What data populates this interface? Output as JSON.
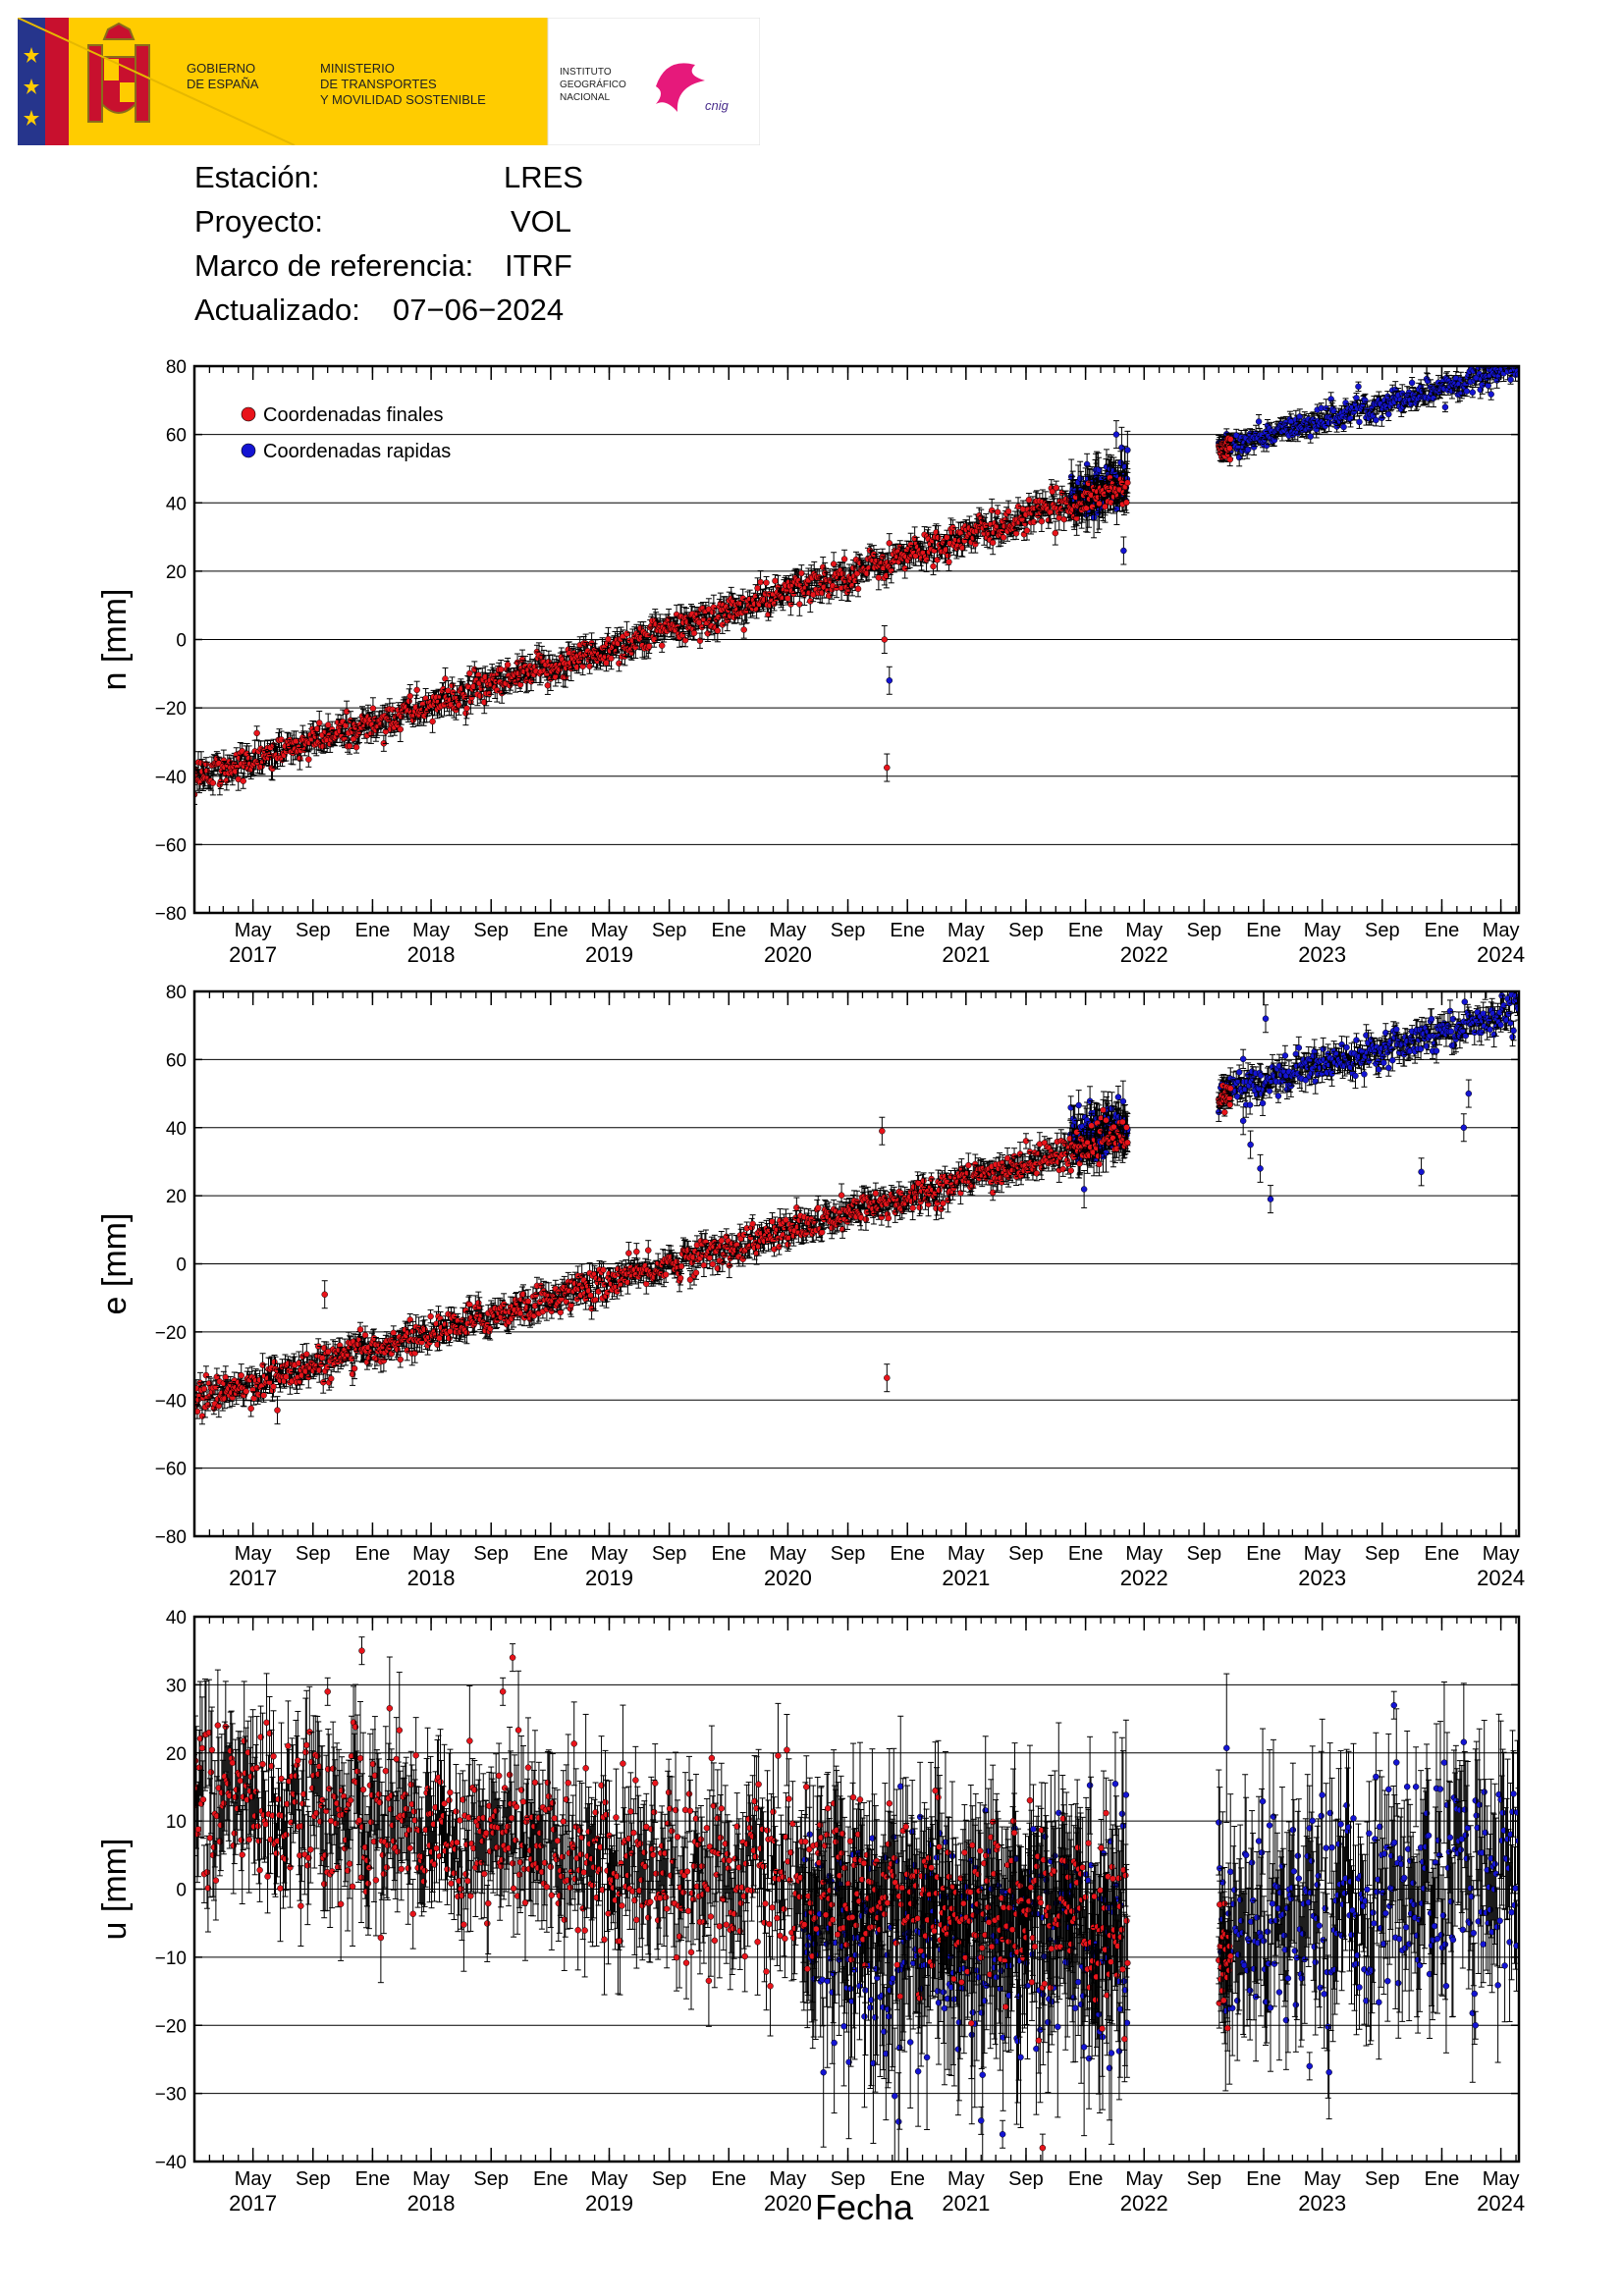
{
  "header": {
    "flag_colors": {
      "red": "#c8102e",
      "yellow": "#ffcc00",
      "blue": "#26358c"
    },
    "gobierno": [
      "GOBIERNO",
      "DE ESPAÑA"
    ],
    "ministerio": [
      "MINISTERIO",
      "DE TRANSPORTES",
      "Y MOVILIDAD SOSTENIBLE"
    ],
    "instituto": [
      "INSTITUTO",
      "GEOGRÁFICO",
      "NACIONAL"
    ],
    "cnig": "cnig",
    "ministry_band_color": "#ffcc00"
  },
  "info": [
    {
      "label": "Estación:",
      "value": "LRES"
    },
    {
      "label": "Proyecto:",
      "value": "VOL"
    },
    {
      "label": "Marco de referencia:",
      "value": "ITRF"
    },
    {
      "label": "Actualizado:",
      "value": "07−06−2024"
    }
  ],
  "xlabel": "Fecha",
  "chart_data": [
    {
      "type": "scatter",
      "ylabel": "n [mm]",
      "ylim": [
        -80,
        80
      ],
      "yticks": [
        -80,
        -60,
        -40,
        -20,
        0,
        20,
        40,
        60,
        80
      ],
      "ytick_labels": [
        "−80",
        "−60",
        "−40",
        "−20",
        "0",
        "20",
        "40",
        "60",
        "80"
      ],
      "xlim": [
        "2017-01-01",
        "2024-06-07"
      ],
      "grid": true,
      "legend": {
        "position": "top-left",
        "entries": [
          {
            "name": "Coordenadas finales",
            "color": "#e8141b"
          },
          {
            "name": "Coordenadas rapidas",
            "color": "#1414d2"
          }
        ]
      },
      "series": [
        {
          "name": "Coordenadas finales",
          "color": "#e8141b",
          "segments": [
            {
              "from": "2017-01-01",
              "to": "2022-03-28",
              "start": -41,
              "end": 45,
              "scatter": 2.4
            },
            {
              "from": "2022-10-01",
              "to": "2022-10-25",
              "start": 55,
              "end": 57,
              "scatter": 1.5
            }
          ]
        },
        {
          "name": "Coordenadas rapidas",
          "color": "#1414d2",
          "segments": [
            {
              "from": "2021-12-01",
              "to": "2022-03-28",
              "start": 42,
              "end": 46,
              "scatter": 4
            },
            {
              "from": "2022-10-01",
              "to": "2024-06-07",
              "start": 56,
              "end": 80,
              "scatter": 1.8
            }
          ]
        }
      ],
      "outliers": [
        {
          "date": "2020-11-20",
          "value": -37.5,
          "series": "Coordenadas finales"
        },
        {
          "date": "2020-11-15",
          "value": 0,
          "series": "Coordenadas finales"
        },
        {
          "date": "2020-11-25",
          "value": -12,
          "series": "Coordenadas rapidas"
        },
        {
          "date": "2022-03-20",
          "value": 26,
          "series": "Coordenadas rapidas"
        },
        {
          "date": "2022-03-05",
          "value": 60,
          "series": "Coordenadas rapidas"
        }
      ]
    },
    {
      "type": "scatter",
      "ylabel": "e [mm]",
      "ylim": [
        -80,
        80
      ],
      "yticks": [
        -80,
        -60,
        -40,
        -20,
        0,
        20,
        40,
        60,
        80
      ],
      "ytick_labels": [
        "−80",
        "−60",
        "−40",
        "−20",
        "0",
        "20",
        "40",
        "60",
        "80"
      ],
      "xlim": [
        "2017-01-01",
        "2024-06-07"
      ],
      "grid": true,
      "series": [
        {
          "name": "Coordenadas finales",
          "color": "#e8141b",
          "segments": [
            {
              "from": "2017-01-01",
              "to": "2022-03-28",
              "start": -40,
              "end": 38,
              "scatter": 2.4
            },
            {
              "from": "2022-10-01",
              "to": "2022-10-25",
              "start": 47,
              "end": 50,
              "scatter": 1.5
            }
          ]
        },
        {
          "name": "Coordenadas rapidas",
          "color": "#1414d2",
          "segments": [
            {
              "from": "2021-12-01",
              "to": "2022-03-28",
              "start": 36,
              "end": 40,
              "scatter": 4
            },
            {
              "from": "2022-10-01",
              "to": "2024-06-07",
              "start": 50,
              "end": 75,
              "scatter": 2.5
            }
          ]
        }
      ],
      "outliers": [
        {
          "date": "2020-11-20",
          "value": -33.5,
          "series": "Coordenadas finales"
        },
        {
          "date": "2020-11-10",
          "value": 39,
          "series": "Coordenadas finales"
        },
        {
          "date": "2022-12-05",
          "value": 35,
          "series": "Coordenadas rapidas"
        },
        {
          "date": "2022-12-25",
          "value": 28,
          "series": "Coordenadas rapidas"
        },
        {
          "date": "2023-01-15",
          "value": 19,
          "series": "Coordenadas rapidas"
        },
        {
          "date": "2023-01-05",
          "value": 72,
          "series": "Coordenadas rapidas"
        },
        {
          "date": "2023-11-20",
          "value": 27,
          "series": "Coordenadas rapidas"
        },
        {
          "date": "2024-02-15",
          "value": 40,
          "series": "Coordenadas rapidas"
        },
        {
          "date": "2024-02-25",
          "value": 50,
          "series": "Coordenadas rapidas"
        },
        {
          "date": "2022-11-20",
          "value": 42,
          "series": "Coordenadas rapidas"
        },
        {
          "date": "2017-06-20",
          "value": -43,
          "series": "Coordenadas finales"
        },
        {
          "date": "2017-09-25",
          "value": -9,
          "series": "Coordenadas finales"
        }
      ]
    },
    {
      "type": "scatter",
      "ylabel": "u [mm]",
      "ylim": [
        -40,
        40
      ],
      "yticks": [
        -40,
        -30,
        -20,
        -10,
        0,
        10,
        20,
        30,
        40
      ],
      "ytick_labels": [
        "−40",
        "−30",
        "−20",
        "−10",
        "0",
        "10",
        "20",
        "30",
        "40"
      ],
      "xlim": [
        "2017-01-01",
        "2024-06-07"
      ],
      "grid": true,
      "series": [
        {
          "name": "Coordenadas finales",
          "color": "#e8141b",
          "segments": [
            {
              "from": "2017-01-01",
              "to": "2022-03-28",
              "start": 14,
              "end": -6,
              "scatter": 6
            },
            {
              "from": "2022-10-01",
              "to": "2022-10-25",
              "start": -12,
              "end": -10,
              "scatter": 4
            }
          ]
        },
        {
          "name": "Coordenadas rapidas",
          "color": "#1414d2",
          "segments": [
            {
              "from": "2020-06-01",
              "to": "2022-03-28",
              "start": -8,
              "end": -6,
              "scatter": 9
            },
            {
              "from": "2022-10-01",
              "to": "2024-06-07",
              "start": -6,
              "end": 4,
              "scatter": 8
            }
          ]
        }
      ],
      "outliers": [
        {
          "date": "2017-12-10",
          "value": 35,
          "series": "Coordenadas finales"
        },
        {
          "date": "2018-10-15",
          "value": 34,
          "series": "Coordenadas finales"
        },
        {
          "date": "2018-09-25",
          "value": 29,
          "series": "Coordenadas finales"
        },
        {
          "date": "2017-10-01",
          "value": 29,
          "series": "Coordenadas finales"
        },
        {
          "date": "2023-09-25",
          "value": 27,
          "series": "Coordenadas rapidas"
        },
        {
          "date": "2023-04-05",
          "value": -26,
          "series": "Coordenadas rapidas"
        },
        {
          "date": "2021-06-01",
          "value": -34,
          "series": "Coordenadas rapidas"
        },
        {
          "date": "2021-07-15",
          "value": -36,
          "series": "Coordenadas rapidas"
        },
        {
          "date": "2021-10-05",
          "value": -38,
          "series": "Coordenadas finales"
        },
        {
          "date": "2024-03-10",
          "value": -20,
          "series": "Coordenadas rapidas"
        }
      ]
    }
  ],
  "x_axis": {
    "month_labels": [
      "May",
      "Sep",
      "Ene",
      "May",
      "Sep",
      "Ene",
      "May",
      "Sep",
      "Ene",
      "May",
      "Sep",
      "Ene",
      "May",
      "Sep",
      "Ene",
      "May",
      "Sep",
      "Ene",
      "May",
      "Sep",
      "Ene",
      "May"
    ],
    "month_dates": [
      "2017-05-01",
      "2017-09-01",
      "2018-01-01",
      "2018-05-01",
      "2018-09-01",
      "2019-01-01",
      "2019-05-01",
      "2019-09-01",
      "2020-01-01",
      "2020-05-01",
      "2020-09-01",
      "2021-01-01",
      "2021-05-01",
      "2021-09-01",
      "2022-01-01",
      "2022-05-01",
      "2022-09-01",
      "2023-01-01",
      "2023-05-01",
      "2023-09-01",
      "2024-01-01",
      "2024-05-01"
    ],
    "year_labels": [
      "2017",
      "2018",
      "2019",
      "2020",
      "2021",
      "2022",
      "2023",
      "2024"
    ],
    "year_dates": [
      "2017-05-01",
      "2018-05-01",
      "2019-05-01",
      "2020-05-01",
      "2021-05-01",
      "2022-05-01",
      "2023-05-01",
      "2024-05-01"
    ]
  }
}
